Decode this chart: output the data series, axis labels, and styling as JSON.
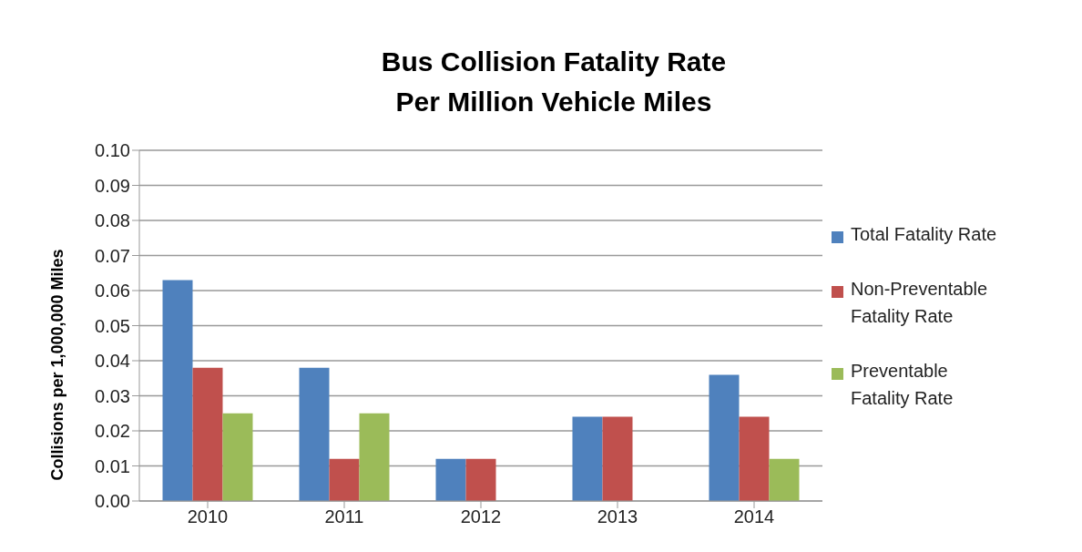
{
  "chart_data": {
    "type": "bar",
    "title": "Bus Collision Fatality Rate\nPer Million Vehicle Miles",
    "ylabel": "Collisions per 1,000,000 Miles",
    "categories": [
      "2010",
      "2011",
      "2012",
      "2013",
      "2014"
    ],
    "series": [
      {
        "name": "Total Fatality Rate",
        "color": "#4f81bd",
        "values": [
          0.063,
          0.038,
          0.012,
          0.024,
          0.036
        ]
      },
      {
        "name": "Non-Preventable Fatality Rate",
        "color": "#c0504d",
        "values": [
          0.038,
          0.012,
          0.012,
          0.024,
          0.024
        ]
      },
      {
        "name": "Preventable Fatality Rate",
        "color": "#9bbb59",
        "values": [
          0.025,
          0.025,
          0,
          0,
          0.012
        ]
      }
    ],
    "ylim": [
      0,
      0.1
    ],
    "yticks": [
      {
        "value": 0,
        "label": "0.00"
      },
      {
        "value": 0.01,
        "label": "0.01"
      },
      {
        "value": 0.02,
        "label": "0.02"
      },
      {
        "value": 0.03,
        "label": "0.03"
      },
      {
        "value": 0.04,
        "label": "0.04"
      },
      {
        "value": 0.05,
        "label": "0.05"
      },
      {
        "value": 0.06,
        "label": "0.06"
      },
      {
        "value": 0.07,
        "label": "0.07"
      },
      {
        "value": 0.08,
        "label": "0.08"
      },
      {
        "value": 0.09,
        "label": "0.09"
      },
      {
        "value": 0.1,
        "label": "0.10"
      }
    ],
    "grid": "y",
    "legend": "right"
  }
}
